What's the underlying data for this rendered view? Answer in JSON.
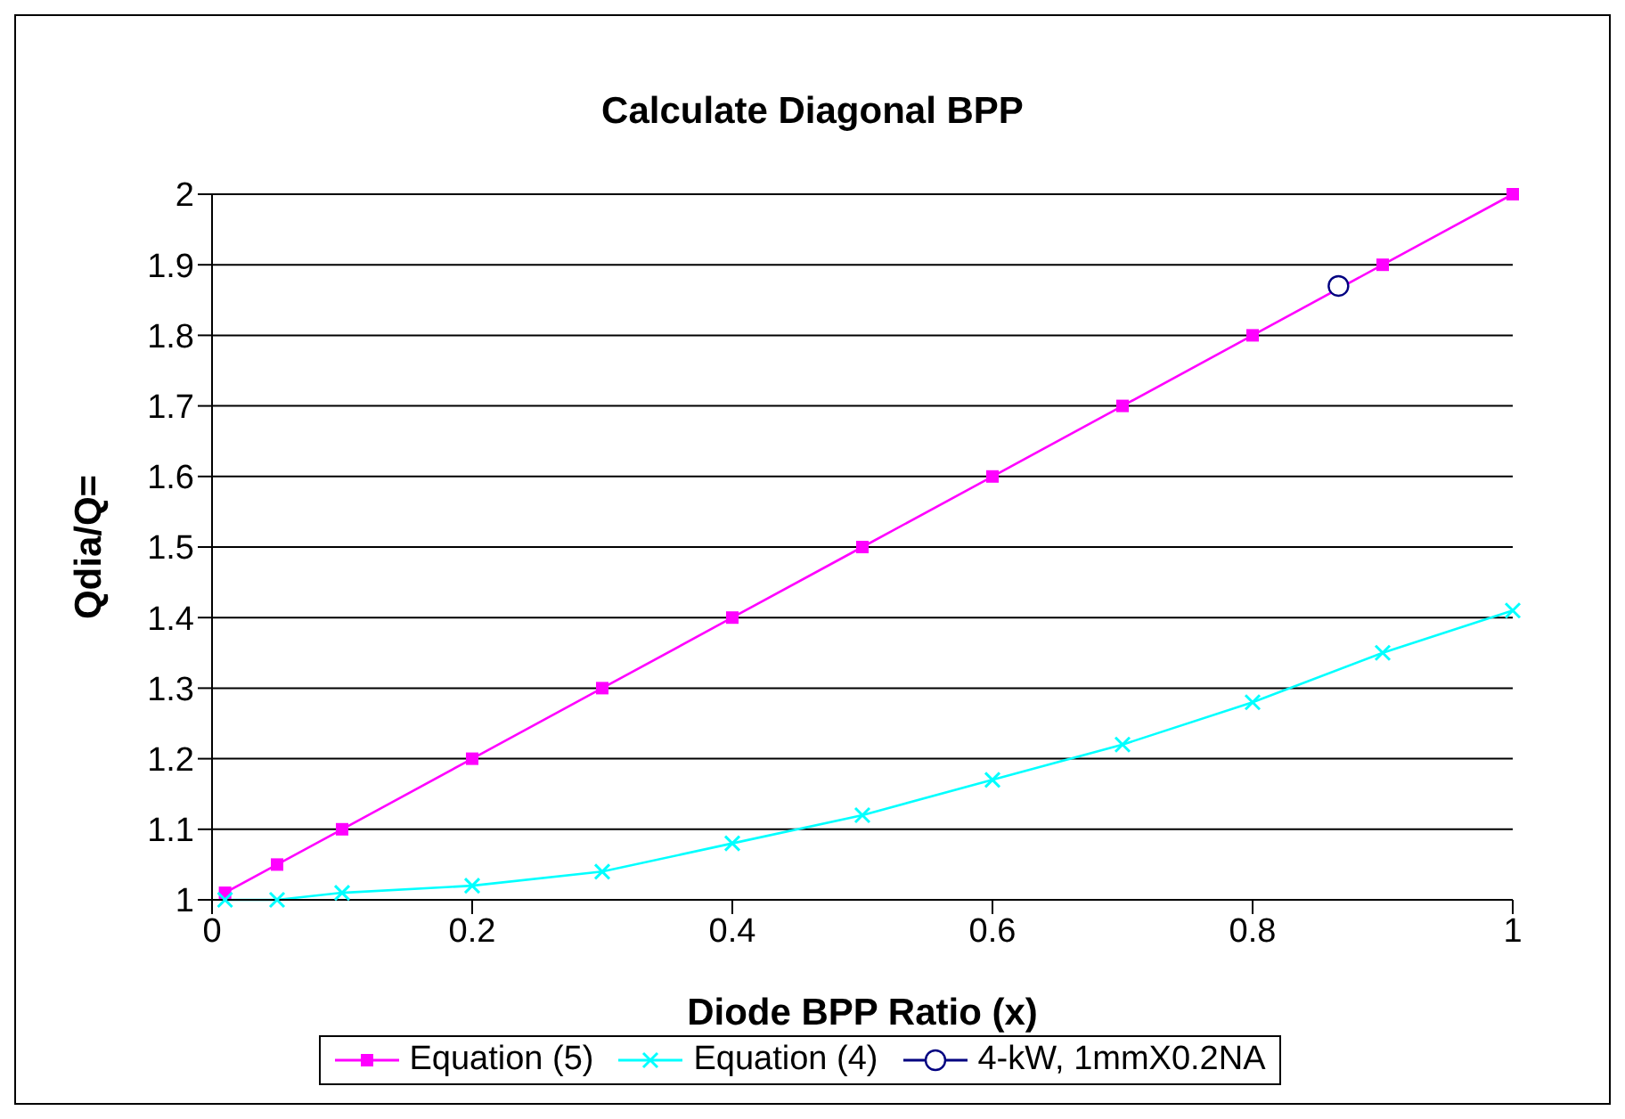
{
  "chart_data": {
    "type": "line",
    "title": "Calculate Diagonal BPP",
    "xlabel": "Diode BPP Ratio (x)",
    "ylabel": "Qdia/Q=",
    "xlim": [
      0,
      1
    ],
    "xticks": [
      0,
      0.2,
      0.4,
      0.6,
      0.8,
      1
    ],
    "ylim": [
      1,
      2
    ],
    "yticks": [
      1,
      1.1,
      1.2,
      1.3,
      1.4,
      1.5,
      1.6,
      1.7,
      1.8,
      1.9,
      2
    ],
    "grid": "y",
    "legend": "bottom",
    "series": [
      {
        "name": "Equation (5)",
        "color": "#ff00ff",
        "marker": "square",
        "x": [
          0.01,
          0.05,
          0.1,
          0.2,
          0.3,
          0.4,
          0.5,
          0.6,
          0.7,
          0.8,
          0.9,
          1
        ],
        "values": [
          1.01,
          1.05,
          1.1,
          1.2,
          1.3,
          1.4,
          1.5,
          1.6,
          1.7,
          1.8,
          1.9,
          2
        ]
      },
      {
        "name": "Equation (4)",
        "color": "#00ffff",
        "marker": "cross",
        "x": [
          0.01,
          0.05,
          0.1,
          0.2,
          0.3,
          0.4,
          0.5,
          0.6,
          0.7,
          0.8,
          0.9,
          1
        ],
        "values": [
          1.0,
          1.0,
          1.01,
          1.02,
          1.04,
          1.08,
          1.12,
          1.17,
          1.22,
          1.28,
          1.35,
          1.41
        ]
      },
      {
        "name": "4-kW, 1mmX0.2NA",
        "color": "#000080",
        "marker": "circle",
        "type": "scatter",
        "x": [
          0.866
        ],
        "values": [
          1.87
        ]
      }
    ]
  }
}
